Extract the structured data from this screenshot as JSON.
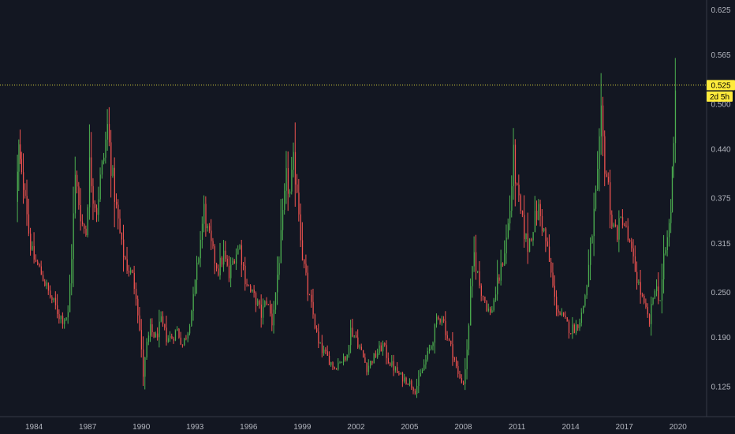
{
  "chart_data": {
    "type": "candlestick",
    "title": "",
    "xlabel": "",
    "ylabel": "",
    "x_range": [
      1982.6,
      2022.1
    ],
    "ylim": [
      0.085,
      0.638
    ],
    "x_ticks": [
      "1984",
      "1987",
      "1990",
      "1993",
      "1996",
      "1999",
      "2002",
      "2005",
      "2008",
      "2011",
      "2014",
      "2017",
      "2020"
    ],
    "y_ticks": [
      "0.125",
      "0.190",
      "0.250",
      "0.315",
      "0.375",
      "0.440",
      "0.500",
      "0.565",
      "0.625"
    ],
    "current_price": {
      "value": 0.525,
      "label": "0.525",
      "countdown": "2d 5h"
    },
    "grid": false,
    "colors": {
      "background": "#131722",
      "up": "#4caf50",
      "down": "#ef5350",
      "price_line": "#d4cf3c",
      "badge": "#ffeb3b",
      "axis_text": "#b2b5be",
      "axis_line": "#363a45"
    },
    "series": [
      {
        "values": [
          [
            1983.5,
            0.37
          ],
          [
            1983.65,
            0.44
          ],
          [
            1983.8,
            0.4
          ],
          [
            1984.0,
            0.39
          ],
          [
            1984.2,
            0.33
          ],
          [
            1984.4,
            0.3
          ],
          [
            1984.6,
            0.29
          ],
          [
            1984.8,
            0.28
          ],
          [
            1985.0,
            0.27
          ],
          [
            1985.3,
            0.25
          ],
          [
            1985.6,
            0.235
          ],
          [
            1985.9,
            0.22
          ],
          [
            1986.1,
            0.215
          ],
          [
            1986.4,
            0.22
          ],
          [
            1986.6,
            0.3
          ],
          [
            1986.8,
            0.4
          ],
          [
            1987.0,
            0.37
          ],
          [
            1987.2,
            0.34
          ],
          [
            1987.4,
            0.33
          ],
          [
            1987.6,
            0.42
          ],
          [
            1987.8,
            0.38
          ],
          [
            1988.0,
            0.36
          ],
          [
            1988.2,
            0.4
          ],
          [
            1988.4,
            0.43
          ],
          [
            1988.6,
            0.47
          ],
          [
            1988.8,
            0.42
          ],
          [
            1989.1,
            0.36
          ],
          [
            1989.4,
            0.31
          ],
          [
            1989.7,
            0.285
          ],
          [
            1990.0,
            0.27
          ],
          [
            1990.2,
            0.25
          ],
          [
            1990.4,
            0.2
          ],
          [
            1990.6,
            0.14
          ],
          [
            1990.8,
            0.18
          ],
          [
            1991.0,
            0.2
          ],
          [
            1991.3,
            0.19
          ],
          [
            1991.6,
            0.21
          ],
          [
            1991.9,
            0.19
          ],
          [
            1992.2,
            0.19
          ],
          [
            1992.5,
            0.2
          ],
          [
            1992.8,
            0.18
          ],
          [
            1993.1,
            0.2
          ],
          [
            1993.4,
            0.24
          ],
          [
            1993.7,
            0.3
          ],
          [
            1994.0,
            0.36
          ],
          [
            1994.2,
            0.33
          ],
          [
            1994.5,
            0.3
          ],
          [
            1994.8,
            0.28
          ],
          [
            1995.1,
            0.3
          ],
          [
            1995.4,
            0.27
          ],
          [
            1995.7,
            0.3
          ],
          [
            1996.0,
            0.31
          ],
          [
            1996.3,
            0.27
          ],
          [
            1996.6,
            0.25
          ],
          [
            1996.9,
            0.24
          ],
          [
            1997.2,
            0.22
          ],
          [
            1997.5,
            0.24
          ],
          [
            1997.8,
            0.21
          ],
          [
            1998.0,
            0.25
          ],
          [
            1998.3,
            0.32
          ],
          [
            1998.6,
            0.4
          ],
          [
            1998.8,
            0.38
          ],
          [
            1999.0,
            0.42
          ],
          [
            1999.2,
            0.39
          ],
          [
            1999.5,
            0.3
          ],
          [
            1999.8,
            0.25
          ],
          [
            2000.1,
            0.22
          ],
          [
            2000.4,
            0.18
          ],
          [
            2000.7,
            0.17
          ],
          [
            2001.0,
            0.16
          ],
          [
            2001.3,
            0.15
          ],
          [
            2001.6,
            0.16
          ],
          [
            2001.9,
            0.16
          ],
          [
            2002.2,
            0.2
          ],
          [
            2002.5,
            0.19
          ],
          [
            2002.8,
            0.17
          ],
          [
            2003.1,
            0.15
          ],
          [
            2003.4,
            0.16
          ],
          [
            2003.7,
            0.17
          ],
          [
            2004.0,
            0.18
          ],
          [
            2004.3,
            0.16
          ],
          [
            2004.6,
            0.15
          ],
          [
            2004.9,
            0.14
          ],
          [
            2005.2,
            0.135
          ],
          [
            2005.5,
            0.13
          ],
          [
            2005.8,
            0.12
          ],
          [
            2006.1,
            0.14
          ],
          [
            2006.4,
            0.16
          ],
          [
            2006.7,
            0.18
          ],
          [
            2007.0,
            0.21
          ],
          [
            2007.3,
            0.22
          ],
          [
            2007.6,
            0.19
          ],
          [
            2007.9,
            0.17
          ],
          [
            2008.2,
            0.14
          ],
          [
            2008.5,
            0.13
          ],
          [
            2008.7,
            0.17
          ],
          [
            2008.9,
            0.25
          ],
          [
            2009.1,
            0.3
          ],
          [
            2009.4,
            0.26
          ],
          [
            2009.7,
            0.24
          ],
          [
            2010.0,
            0.22
          ],
          [
            2010.3,
            0.25
          ],
          [
            2010.6,
            0.28
          ],
          [
            2010.9,
            0.32
          ],
          [
            2011.1,
            0.36
          ],
          [
            2011.3,
            0.43
          ],
          [
            2011.5,
            0.38
          ],
          [
            2011.8,
            0.34
          ],
          [
            2012.1,
            0.31
          ],
          [
            2012.4,
            0.34
          ],
          [
            2012.7,
            0.36
          ],
          [
            2013.0,
            0.33
          ],
          [
            2013.3,
            0.29
          ],
          [
            2013.6,
            0.24
          ],
          [
            2013.9,
            0.22
          ],
          [
            2014.2,
            0.21
          ],
          [
            2014.5,
            0.2
          ],
          [
            2014.8,
            0.205
          ],
          [
            2015.1,
            0.22
          ],
          [
            2015.4,
            0.26
          ],
          [
            2015.7,
            0.33
          ],
          [
            2016.0,
            0.4
          ],
          [
            2016.2,
            0.48
          ],
          [
            2016.4,
            0.42
          ],
          [
            2016.6,
            0.39
          ],
          [
            2016.8,
            0.34
          ],
          [
            2017.1,
            0.33
          ],
          [
            2017.4,
            0.35
          ],
          [
            2017.7,
            0.32
          ],
          [
            2018.0,
            0.29
          ],
          [
            2018.3,
            0.26
          ],
          [
            2018.6,
            0.23
          ],
          [
            2018.9,
            0.21
          ],
          [
            2019.2,
            0.26
          ],
          [
            2019.5,
            0.24
          ],
          [
            2019.7,
            0.29
          ],
          [
            2019.9,
            0.32
          ],
          [
            2020.1,
            0.36
          ],
          [
            2020.25,
            0.46
          ],
          [
            2020.35,
            0.525
          ]
        ]
      }
    ]
  }
}
